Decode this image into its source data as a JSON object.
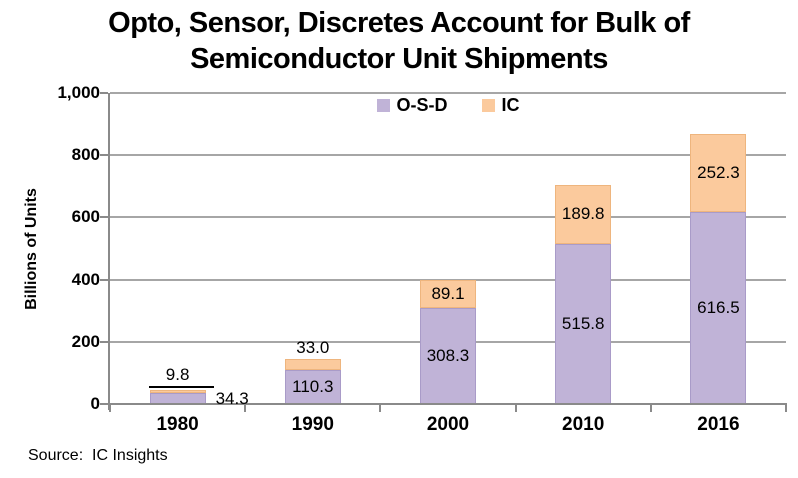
{
  "title": {
    "line1": "Opto, Sensor, Discretes Account for Bulk of",
    "line2": "Semiconductor Unit Shipments"
  },
  "source_note": "Source:  IC Insights",
  "colors": {
    "osd_fill": "#c0b3d7",
    "osd_border": "#a99bc8",
    "ic_fill": "#fbca9d",
    "ic_border": "#eeb57e",
    "gridline": "#a6a6a6",
    "axis": "#8a8a8a",
    "text": "#000000",
    "background": "#ffffff"
  },
  "chart_data": {
    "type": "bar",
    "stacked": true,
    "title": "Opto, Sensor, Discretes Account for Bulk of Semiconductor Unit Shipments",
    "ylabel": "Billions of Units",
    "xlabel": "",
    "categories": [
      "1980",
      "1990",
      "2000",
      "2010",
      "2016"
    ],
    "series": [
      {
        "name": "O-S-D",
        "color": "#c0b3d7",
        "border_color": "#a99bc8",
        "values": [
          34.3,
          110.3,
          308.3,
          515.8,
          616.5
        ],
        "label_placement": [
          "right",
          "inside",
          "inside",
          "inside",
          "inside"
        ]
      },
      {
        "name": "IC",
        "color": "#fbca9d",
        "border_color": "#eeb57e",
        "values": [
          9.8,
          33.0,
          89.1,
          189.8,
          252.3
        ],
        "label_placement": [
          "above-leader",
          "above",
          "inside",
          "inside",
          "inside"
        ]
      }
    ],
    "ylim": [
      0,
      1000
    ],
    "ytick_values": [
      0,
      200,
      400,
      600,
      800,
      1000
    ],
    "ytick_labels": [
      "0",
      "200",
      "400",
      "600",
      "800",
      "1,000"
    ],
    "grid": true,
    "legend_position": "top-center"
  }
}
